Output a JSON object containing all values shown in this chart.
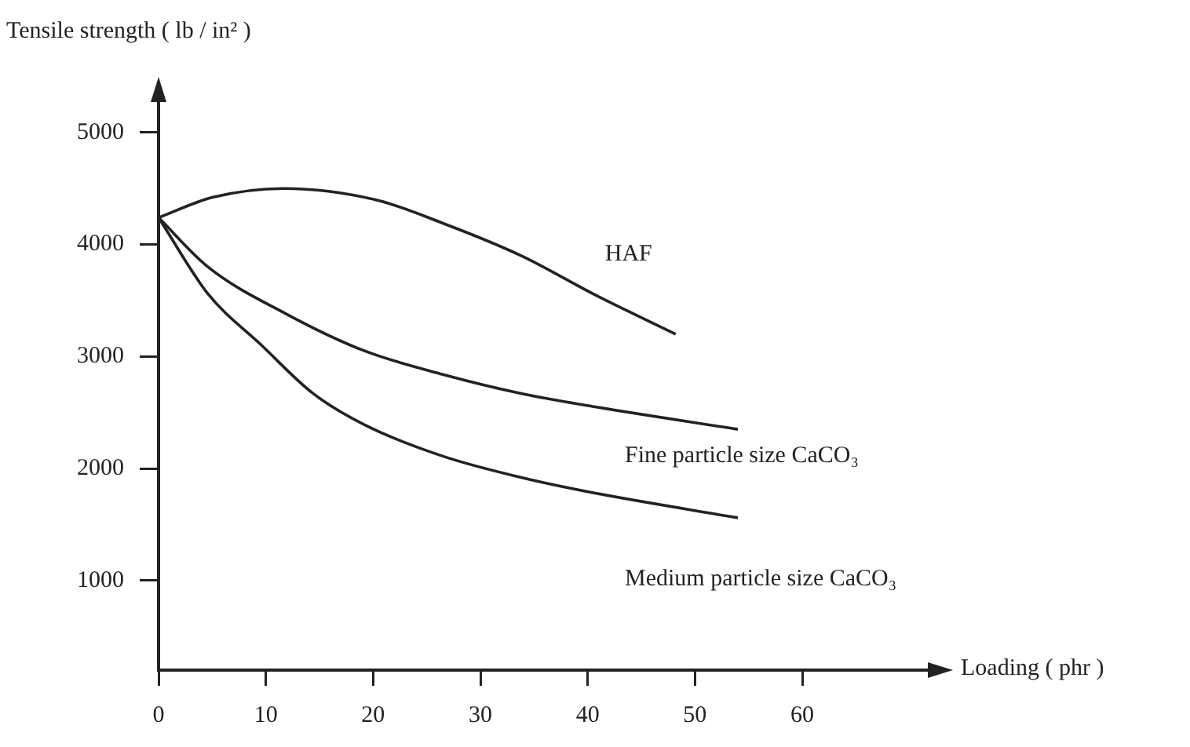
{
  "chart_data": {
    "type": "line",
    "xlabel": "Loading ( phr )",
    "ylabel": "Tensile strength ( lb / in² )",
    "xlim": [
      0,
      72
    ],
    "ylim": [
      200,
      5300
    ],
    "xticks": [
      0,
      10,
      20,
      30,
      40,
      50,
      60
    ],
    "yticks": [
      1000,
      2000,
      3000,
      4000,
      5000
    ],
    "marker": "none",
    "line_style": "solid",
    "series": [
      {
        "name": "HAF",
        "color": "#222222",
        "x": [
          0,
          5,
          11.7,
          20.2,
          26.5,
          33.8,
          40.7,
          48.2
        ],
        "values": [
          4240,
          4420,
          4500,
          4400,
          4190,
          3900,
          3550,
          3200
        ]
      },
      {
        "name": "Fine particle size CaCO₃",
        "color": "#222222",
        "x": [
          0,
          4.6,
          11.9,
          19.2,
          26.5,
          33.8,
          40.7,
          54
        ],
        "values": [
          4240,
          3800,
          3380,
          3050,
          2840,
          2670,
          2550,
          2350
        ]
      },
      {
        "name": "Medium particle size CaCO₃",
        "color": "#222222",
        "x": [
          0,
          4.6,
          9.6,
          14.4,
          19.2,
          26.5,
          33.8,
          40.7,
          54
        ],
        "values": [
          4240,
          3560,
          3100,
          2670,
          2390,
          2110,
          1920,
          1780,
          1560
        ]
      }
    ]
  }
}
